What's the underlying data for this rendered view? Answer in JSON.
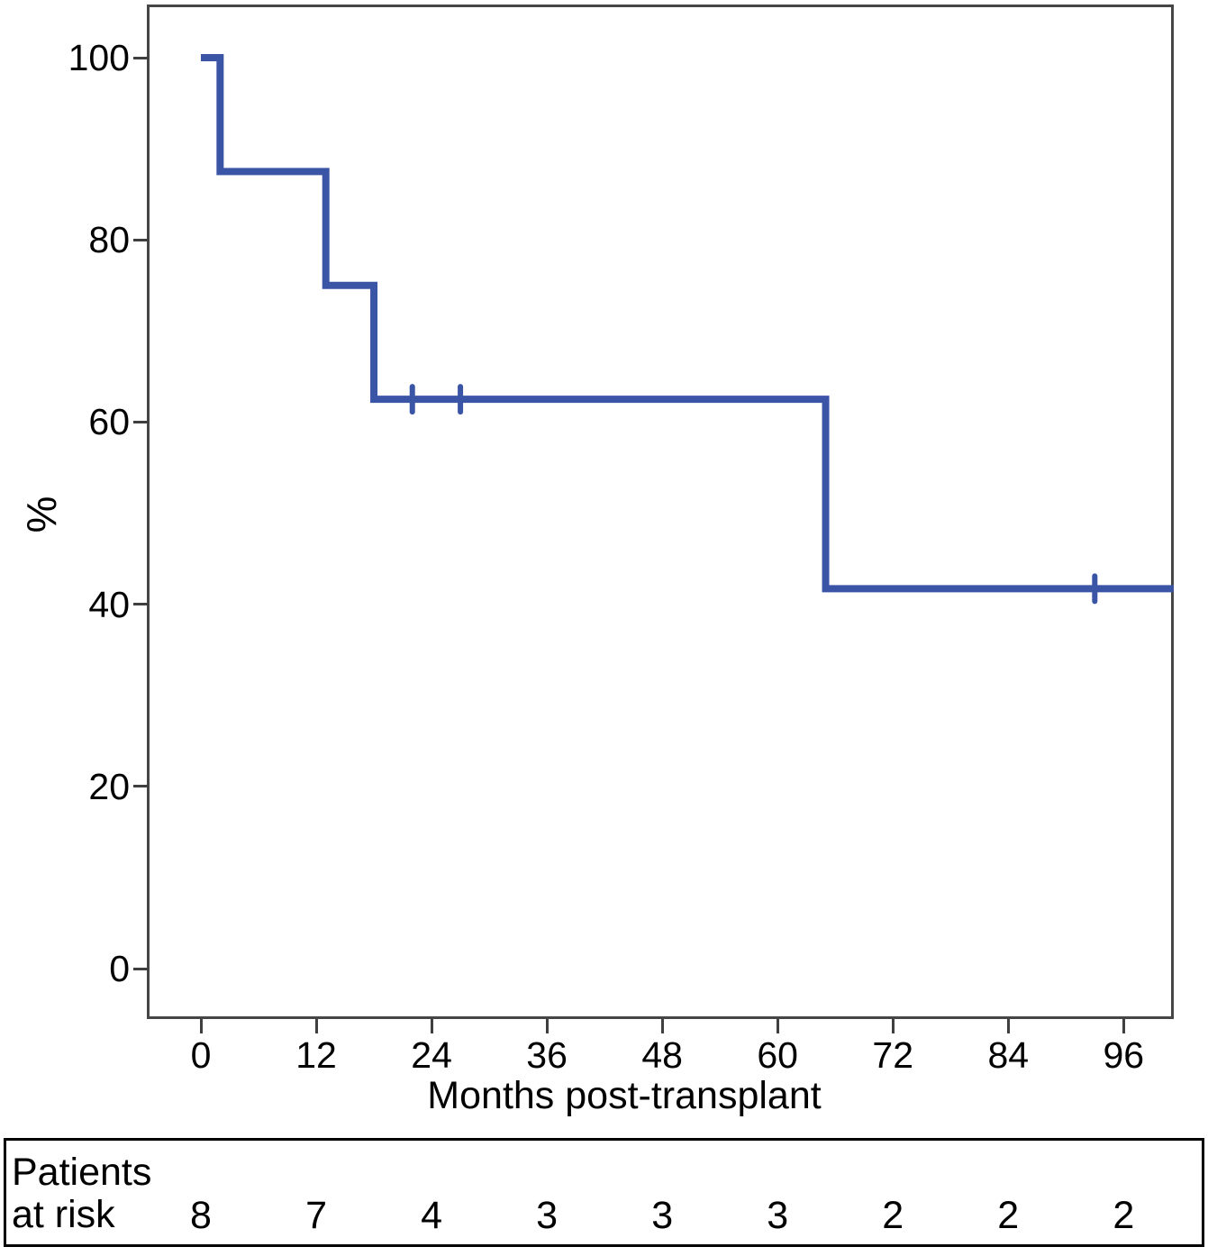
{
  "figure": {
    "kind": "kaplan-meier-survival-plot",
    "background_color": "#ffffff",
    "frame_color": "#464646",
    "text_color": "#000000"
  },
  "chart_data": {
    "type": "line",
    "subtype": "kaplan_meier_step",
    "title": "",
    "xlabel": "Months post-transplant",
    "ylabel": "%",
    "xlim": [
      0,
      101
    ],
    "ylim": [
      0,
      100
    ],
    "x_ticks": [
      0,
      12,
      24,
      36,
      48,
      60,
      72,
      84,
      96
    ],
    "y_ticks": [
      0,
      20,
      40,
      60,
      80,
      100
    ],
    "grid": false,
    "legend": false,
    "series": [
      {
        "name": "survival",
        "color": "#3b55a6",
        "line_width": 8,
        "step_points": [
          [
            0,
            100
          ],
          [
            2,
            100
          ],
          [
            2,
            87.5
          ],
          [
            13,
            87.5
          ],
          [
            13,
            75
          ],
          [
            18,
            75
          ],
          [
            18,
            62.5
          ],
          [
            65,
            62.5
          ],
          [
            65,
            41.7
          ],
          [
            101.2,
            41.7
          ]
        ],
        "censor_marks": [
          [
            22,
            62.5
          ],
          [
            27,
            62.5
          ],
          [
            93,
            41.7
          ]
        ]
      }
    ],
    "risk_table": {
      "label_line1": "Patients",
      "label_line2": "at risk",
      "months": [
        0,
        12,
        24,
        36,
        48,
        60,
        72,
        84,
        96
      ],
      "counts": [
        "8",
        "7",
        "4",
        "3",
        "3",
        "3",
        "2",
        "2",
        "2"
      ]
    }
  }
}
